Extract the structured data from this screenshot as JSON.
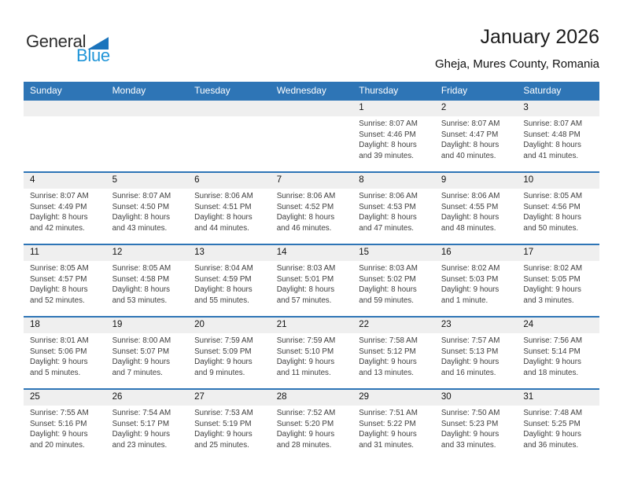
{
  "logo": {
    "general": "General",
    "blue": "Blue"
  },
  "header": {
    "month_title": "January 2026",
    "location": "Gheja, Mures County, Romania"
  },
  "colors": {
    "header_bar_blue": "#2e75b6",
    "week_divider_blue": "#2e75b6",
    "day_number_strip_gray": "#efefef",
    "logo_text_blue": "#2095d8",
    "logo_triangle_blue": "#1b74bc"
  },
  "weekdays": [
    "Sunday",
    "Monday",
    "Tuesday",
    "Wednesday",
    "Thursday",
    "Friday",
    "Saturday"
  ],
  "weeks": [
    [
      null,
      null,
      null,
      null,
      {
        "day": "1",
        "sunrise": "Sunrise: 8:07 AM",
        "sunset": "Sunset: 4:46 PM",
        "daylight": "Daylight: 8 hours and 39 minutes."
      },
      {
        "day": "2",
        "sunrise": "Sunrise: 8:07 AM",
        "sunset": "Sunset: 4:47 PM",
        "daylight": "Daylight: 8 hours and 40 minutes."
      },
      {
        "day": "3",
        "sunrise": "Sunrise: 8:07 AM",
        "sunset": "Sunset: 4:48 PM",
        "daylight": "Daylight: 8 hours and 41 minutes."
      }
    ],
    [
      {
        "day": "4",
        "sunrise": "Sunrise: 8:07 AM",
        "sunset": "Sunset: 4:49 PM",
        "daylight": "Daylight: 8 hours and 42 minutes."
      },
      {
        "day": "5",
        "sunrise": "Sunrise: 8:07 AM",
        "sunset": "Sunset: 4:50 PM",
        "daylight": "Daylight: 8 hours and 43 minutes."
      },
      {
        "day": "6",
        "sunrise": "Sunrise: 8:06 AM",
        "sunset": "Sunset: 4:51 PM",
        "daylight": "Daylight: 8 hours and 44 minutes."
      },
      {
        "day": "7",
        "sunrise": "Sunrise: 8:06 AM",
        "sunset": "Sunset: 4:52 PM",
        "daylight": "Daylight: 8 hours and 46 minutes."
      },
      {
        "day": "8",
        "sunrise": "Sunrise: 8:06 AM",
        "sunset": "Sunset: 4:53 PM",
        "daylight": "Daylight: 8 hours and 47 minutes."
      },
      {
        "day": "9",
        "sunrise": "Sunrise: 8:06 AM",
        "sunset": "Sunset: 4:55 PM",
        "daylight": "Daylight: 8 hours and 48 minutes."
      },
      {
        "day": "10",
        "sunrise": "Sunrise: 8:05 AM",
        "sunset": "Sunset: 4:56 PM",
        "daylight": "Daylight: 8 hours and 50 minutes."
      }
    ],
    [
      {
        "day": "11",
        "sunrise": "Sunrise: 8:05 AM",
        "sunset": "Sunset: 4:57 PM",
        "daylight": "Daylight: 8 hours and 52 minutes."
      },
      {
        "day": "12",
        "sunrise": "Sunrise: 8:05 AM",
        "sunset": "Sunset: 4:58 PM",
        "daylight": "Daylight: 8 hours and 53 minutes."
      },
      {
        "day": "13",
        "sunrise": "Sunrise: 8:04 AM",
        "sunset": "Sunset: 4:59 PM",
        "daylight": "Daylight: 8 hours and 55 minutes."
      },
      {
        "day": "14",
        "sunrise": "Sunrise: 8:03 AM",
        "sunset": "Sunset: 5:01 PM",
        "daylight": "Daylight: 8 hours and 57 minutes."
      },
      {
        "day": "15",
        "sunrise": "Sunrise: 8:03 AM",
        "sunset": "Sunset: 5:02 PM",
        "daylight": "Daylight: 8 hours and 59 minutes."
      },
      {
        "day": "16",
        "sunrise": "Sunrise: 8:02 AM",
        "sunset": "Sunset: 5:03 PM",
        "daylight": "Daylight: 9 hours and 1 minute."
      },
      {
        "day": "17",
        "sunrise": "Sunrise: 8:02 AM",
        "sunset": "Sunset: 5:05 PM",
        "daylight": "Daylight: 9 hours and 3 minutes."
      }
    ],
    [
      {
        "day": "18",
        "sunrise": "Sunrise: 8:01 AM",
        "sunset": "Sunset: 5:06 PM",
        "daylight": "Daylight: 9 hours and 5 minutes."
      },
      {
        "day": "19",
        "sunrise": "Sunrise: 8:00 AM",
        "sunset": "Sunset: 5:07 PM",
        "daylight": "Daylight: 9 hours and 7 minutes."
      },
      {
        "day": "20",
        "sunrise": "Sunrise: 7:59 AM",
        "sunset": "Sunset: 5:09 PM",
        "daylight": "Daylight: 9 hours and 9 minutes."
      },
      {
        "day": "21",
        "sunrise": "Sunrise: 7:59 AM",
        "sunset": "Sunset: 5:10 PM",
        "daylight": "Daylight: 9 hours and 11 minutes."
      },
      {
        "day": "22",
        "sunrise": "Sunrise: 7:58 AM",
        "sunset": "Sunset: 5:12 PM",
        "daylight": "Daylight: 9 hours and 13 minutes."
      },
      {
        "day": "23",
        "sunrise": "Sunrise: 7:57 AM",
        "sunset": "Sunset: 5:13 PM",
        "daylight": "Daylight: 9 hours and 16 minutes."
      },
      {
        "day": "24",
        "sunrise": "Sunrise: 7:56 AM",
        "sunset": "Sunset: 5:14 PM",
        "daylight": "Daylight: 9 hours and 18 minutes."
      }
    ],
    [
      {
        "day": "25",
        "sunrise": "Sunrise: 7:55 AM",
        "sunset": "Sunset: 5:16 PM",
        "daylight": "Daylight: 9 hours and 20 minutes."
      },
      {
        "day": "26",
        "sunrise": "Sunrise: 7:54 AM",
        "sunset": "Sunset: 5:17 PM",
        "daylight": "Daylight: 9 hours and 23 minutes."
      },
      {
        "day": "27",
        "sunrise": "Sunrise: 7:53 AM",
        "sunset": "Sunset: 5:19 PM",
        "daylight": "Daylight: 9 hours and 25 minutes."
      },
      {
        "day": "28",
        "sunrise": "Sunrise: 7:52 AM",
        "sunset": "Sunset: 5:20 PM",
        "daylight": "Daylight: 9 hours and 28 minutes."
      },
      {
        "day": "29",
        "sunrise": "Sunrise: 7:51 AM",
        "sunset": "Sunset: 5:22 PM",
        "daylight": "Daylight: 9 hours and 31 minutes."
      },
      {
        "day": "30",
        "sunrise": "Sunrise: 7:50 AM",
        "sunset": "Sunset: 5:23 PM",
        "daylight": "Daylight: 9 hours and 33 minutes."
      },
      {
        "day": "31",
        "sunrise": "Sunrise: 7:48 AM",
        "sunset": "Sunset: 5:25 PM",
        "daylight": "Daylight: 9 hours and 36 minutes."
      }
    ]
  ]
}
